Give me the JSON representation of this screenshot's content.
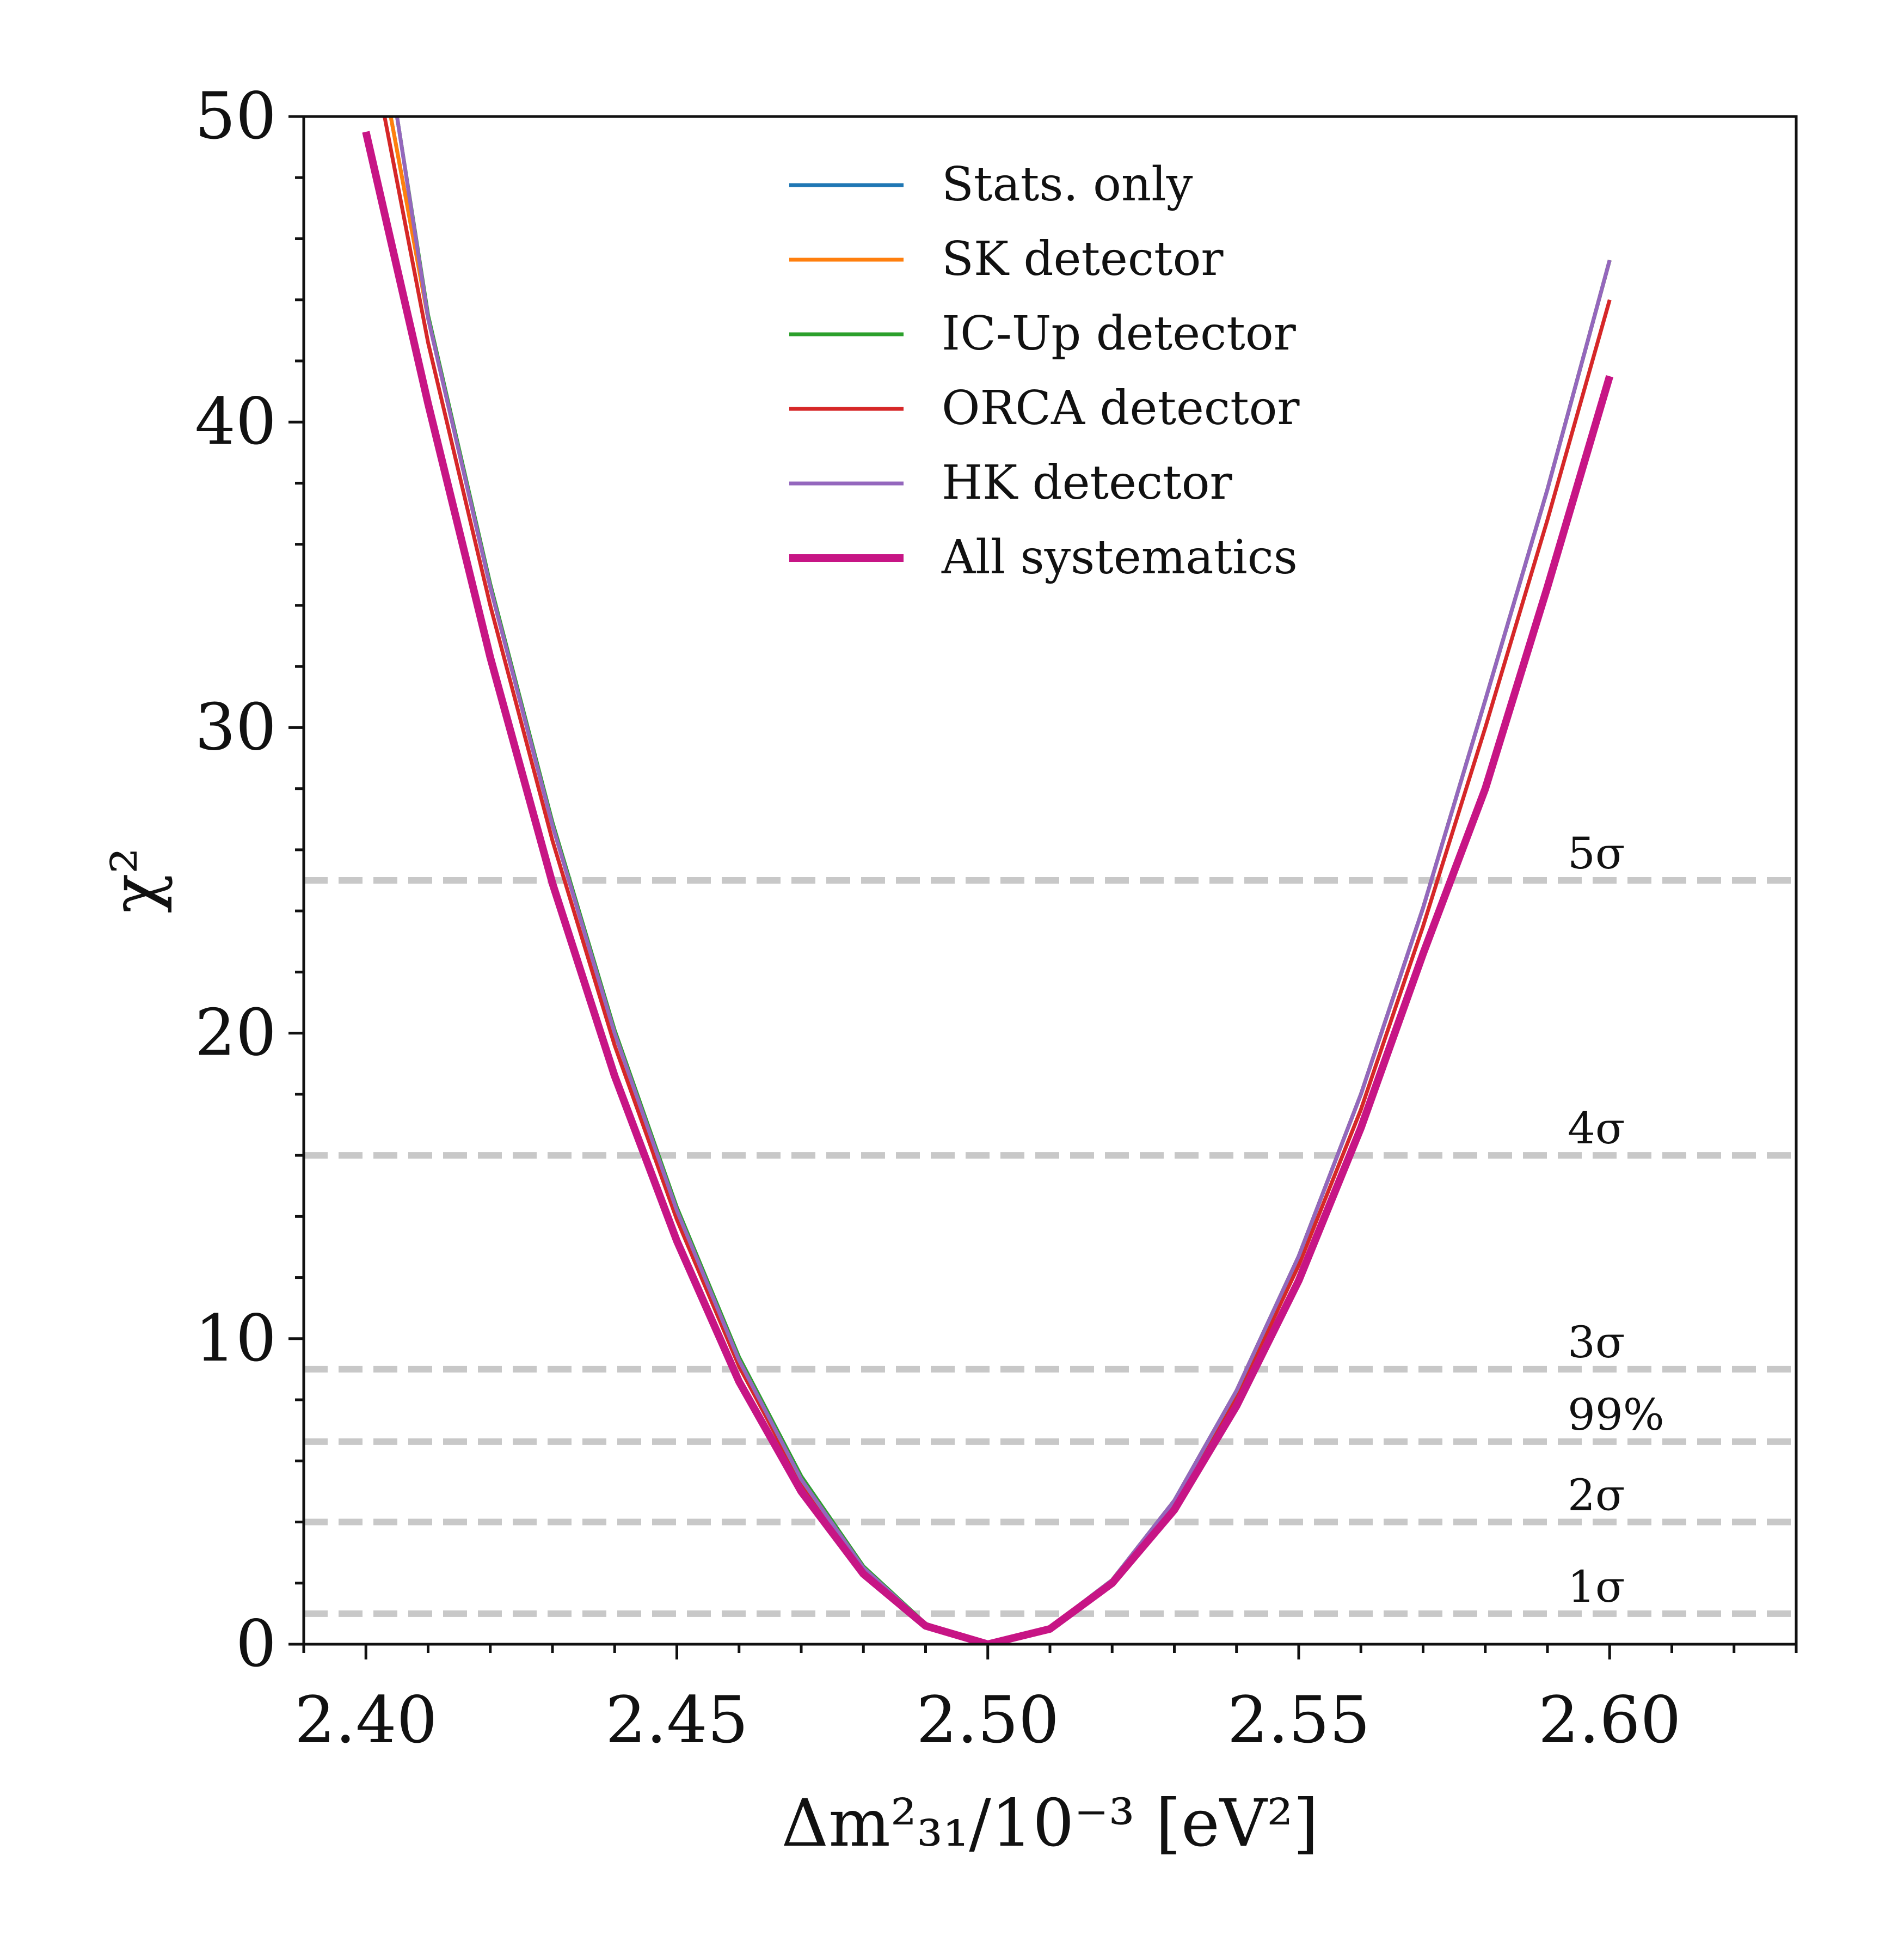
{
  "chart_data": {
    "type": "line",
    "title": "",
    "xlabel": "Δm²₃₁/10⁻³ [eV²]",
    "ylabel": "χ²",
    "xlim": [
      2.39,
      2.63
    ],
    "ylim": [
      0,
      50
    ],
    "grid": false,
    "legend_position": "top-center",
    "x_ticks": [
      2.4,
      2.45,
      2.5,
      2.55,
      2.6
    ],
    "x_tick_labels": [
      "2.40",
      "2.45",
      "2.50",
      "2.55",
      "2.60"
    ],
    "y_ticks": [
      0,
      10,
      20,
      30,
      40,
      50
    ],
    "y_tick_labels": [
      "0",
      "10",
      "20",
      "30",
      "40",
      "50"
    ],
    "x_minor_step": 0.01,
    "y_minor_step": 2,
    "series": [
      {
        "name": "Stats. only",
        "color": "#1f77b4",
        "x": [
          2.404,
          2.41,
          2.42,
          2.43,
          2.44,
          2.45,
          2.46,
          2.47,
          2.48,
          2.49,
          2.5,
          2.51,
          2.52,
          2.53,
          2.54,
          2.55,
          2.56,
          2.57,
          2.58,
          2.59,
          2.6
        ],
        "values": [
          50.0,
          43.4,
          34.6,
          26.8,
          20.0,
          14.2,
          9.3,
          5.4,
          2.5,
          0.65,
          0,
          0.55,
          2.1,
          4.7,
          8.3,
          12.7,
          18.0,
          24.1,
          30.9,
          37.8,
          45.3
        ]
      },
      {
        "name": "SK detector",
        "color": "#ff7f0e",
        "x": [
          2.404,
          2.41,
          2.42,
          2.43,
          2.44,
          2.45,
          2.46,
          2.47,
          2.48,
          2.49,
          2.5,
          2.51,
          2.52,
          2.53,
          2.54,
          2.55,
          2.56,
          2.57,
          2.58,
          2.59,
          2.6
        ],
        "values": [
          50.0,
          43.4,
          34.6,
          26.8,
          20.0,
          14.2,
          9.3,
          5.4,
          2.5,
          0.65,
          0,
          0.55,
          2.1,
          4.7,
          8.3,
          12.7,
          18.0,
          24.1,
          30.9,
          37.8,
          45.3
        ]
      },
      {
        "name": "IC-Up detector",
        "color": "#2ca02c",
        "x": [
          2.405,
          2.41,
          2.42,
          2.43,
          2.44,
          2.45,
          2.46,
          2.47,
          2.48,
          2.49,
          2.5,
          2.51,
          2.52,
          2.53,
          2.54,
          2.55,
          2.56,
          2.57,
          2.58,
          2.59,
          2.6
        ],
        "values": [
          50.0,
          43.5,
          34.7,
          26.9,
          20.1,
          14.3,
          9.4,
          5.5,
          2.55,
          0.67,
          0,
          0.55,
          2.1,
          4.7,
          8.3,
          12.7,
          18.0,
          24.1,
          30.9,
          37.8,
          45.3
        ]
      },
      {
        "name": "ORCA detector",
        "color": "#d62728",
        "x": [
          2.403,
          2.41,
          2.42,
          2.43,
          2.44,
          2.45,
          2.46,
          2.47,
          2.48,
          2.49,
          2.5,
          2.51,
          2.52,
          2.53,
          2.54,
          2.55,
          2.56,
          2.57,
          2.58,
          2.59,
          2.6
        ],
        "values": [
          50.0,
          42.6,
          34.0,
          26.3,
          19.6,
          13.9,
          9.1,
          5.3,
          2.45,
          0.63,
          0,
          0.54,
          2.05,
          4.6,
          8.1,
          12.4,
          17.5,
          23.5,
          30.0,
          36.8,
          44.0
        ]
      },
      {
        "name": "HK detector",
        "color": "#9467bd",
        "x": [
          2.405,
          2.41,
          2.42,
          2.43,
          2.44,
          2.45,
          2.46,
          2.47,
          2.48,
          2.49,
          2.5,
          2.51,
          2.52,
          2.53,
          2.54,
          2.55,
          2.56,
          2.57,
          2.58,
          2.59,
          2.6
        ],
        "values": [
          50.0,
          43.4,
          34.6,
          26.8,
          20.0,
          14.2,
          9.3,
          5.4,
          2.5,
          0.65,
          0,
          0.55,
          2.1,
          4.7,
          8.3,
          12.7,
          18.0,
          24.1,
          30.9,
          37.8,
          45.3
        ]
      },
      {
        "name": "All systematics",
        "color": "#c71585",
        "x": [
          2.4,
          2.41,
          2.42,
          2.43,
          2.44,
          2.45,
          2.46,
          2.47,
          2.48,
          2.49,
          2.5,
          2.51,
          2.52,
          2.53,
          2.54,
          2.55,
          2.56,
          2.57,
          2.58,
          2.59,
          2.6
        ],
        "values": [
          49.5,
          40.6,
          32.3,
          24.9,
          18.6,
          13.2,
          8.6,
          5.0,
          2.3,
          0.6,
          0,
          0.5,
          2.0,
          4.4,
          7.8,
          11.9,
          16.9,
          22.6,
          28.0,
          34.6,
          41.5
        ]
      }
    ],
    "reference_lines": [
      {
        "label": "1σ",
        "value": 1.0
      },
      {
        "label": "2σ",
        "value": 4.0
      },
      {
        "label": "99%",
        "value": 6.63
      },
      {
        "label": "3σ",
        "value": 9.0
      },
      {
        "label": "4σ",
        "value": 16.0
      },
      {
        "label": "5σ",
        "value": 25.0
      }
    ],
    "reference_line_color": "#c8c8c8"
  }
}
